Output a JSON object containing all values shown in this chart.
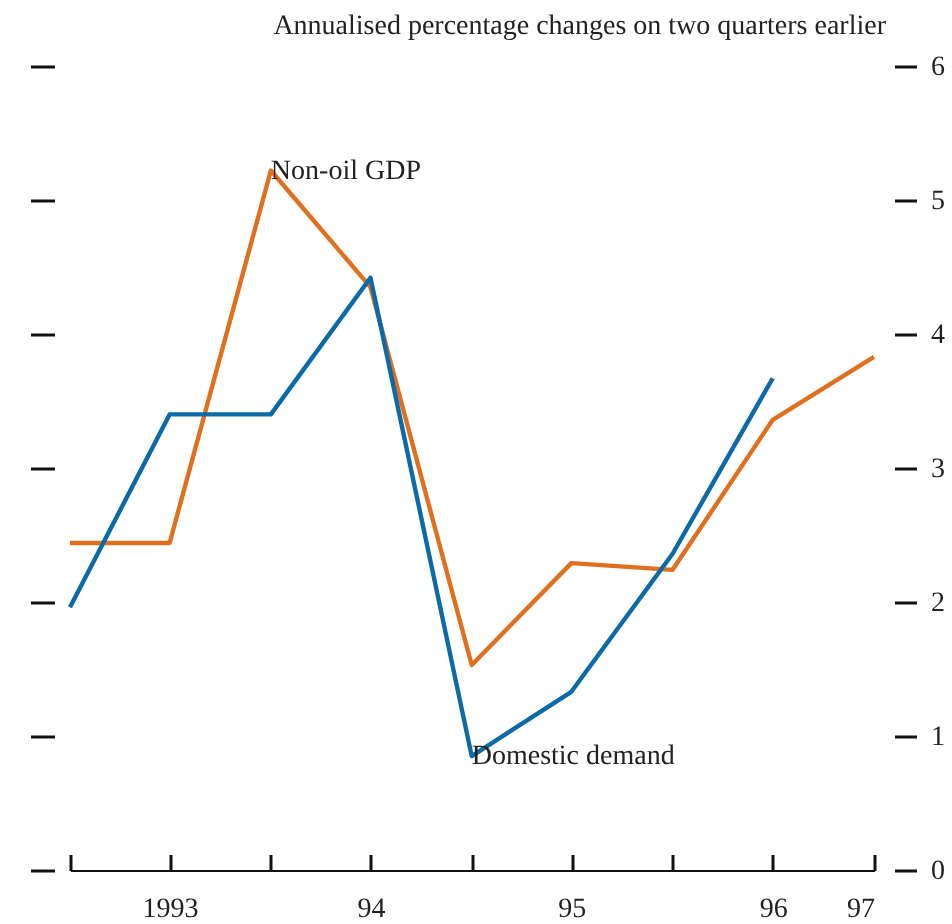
{
  "chart_data": {
    "type": "line",
    "title": "Annualised percentage changes on two quarters earlier",
    "x": [
      "1993-01",
      "1993-07",
      "1994-01",
      "1994-07",
      "1995-01",
      "1995-07",
      "1996-01",
      "1996-07",
      "1997-01"
    ],
    "series": [
      {
        "name": "Non-oil GDP",
        "color": "#e07020",
        "values": [
          2.44,
          2.44,
          5.22,
          4.35,
          1.53,
          2.29,
          2.24,
          3.36,
          3.83
        ]
      },
      {
        "name": "Domestic demand",
        "color": "#0b6aa8",
        "values": [
          1.96,
          3.4,
          3.4,
          4.42,
          0.85,
          1.33,
          2.36,
          3.67,
          null
        ]
      }
    ],
    "xlim": [
      "1993-01",
      "1997-01"
    ],
    "xticks": [
      {
        "value": "1993-01",
        "label": null
      },
      {
        "value": "1993-07",
        "label": "1993"
      },
      {
        "value": "1994-01",
        "label": null
      },
      {
        "value": "1994-07",
        "label": "94"
      },
      {
        "value": "1995-01",
        "label": null
      },
      {
        "value": "1995-07",
        "label": "95"
      },
      {
        "value": "1996-01",
        "label": null
      },
      {
        "value": "1996-07",
        "label": "96"
      },
      {
        "value": "1997-01",
        "label": "97"
      }
    ],
    "ylim": [
      0,
      6
    ],
    "yticks": [
      0,
      1,
      2,
      3,
      4,
      5,
      6
    ],
    "grid": false,
    "legend": false,
    "marker": "none",
    "line_style": "solid"
  }
}
